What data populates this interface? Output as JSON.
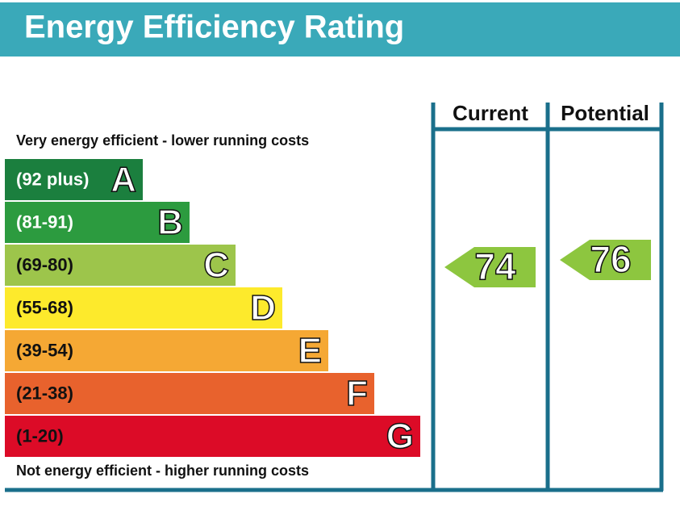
{
  "header": {
    "title": "Energy Efficiency Rating"
  },
  "top_note": "Very energy efficient - lower running costs",
  "bottom_note": "Not energy efficient - higher running costs",
  "bands": [
    {
      "range": "(92 plus)",
      "letter": "A",
      "color": "#1b7f3e",
      "text_color": "#ffffff"
    },
    {
      "range": "(81-91)",
      "letter": "B",
      "color": "#2c9b3f",
      "text_color": "#ffffff"
    },
    {
      "range": "(69-80)",
      "letter": "C",
      "color": "#9dc54b",
      "text_color": "#111111"
    },
    {
      "range": "(55-68)",
      "letter": "D",
      "color": "#fdea2c",
      "text_color": "#111111"
    },
    {
      "range": "(39-54)",
      "letter": "E",
      "color": "#f5a834",
      "text_color": "#111111"
    },
    {
      "range": "(21-38)",
      "letter": "F",
      "color": "#e8622d",
      "text_color": "#111111"
    },
    {
      "range": "(1-20)",
      "letter": "G",
      "color": "#dc0b27",
      "text_color": "#111111"
    }
  ],
  "columns": [
    {
      "label": "Current",
      "value": "74",
      "color": "#8dc63f"
    },
    {
      "label": "Potential",
      "value": "76",
      "color": "#8dc63f"
    }
  ]
}
